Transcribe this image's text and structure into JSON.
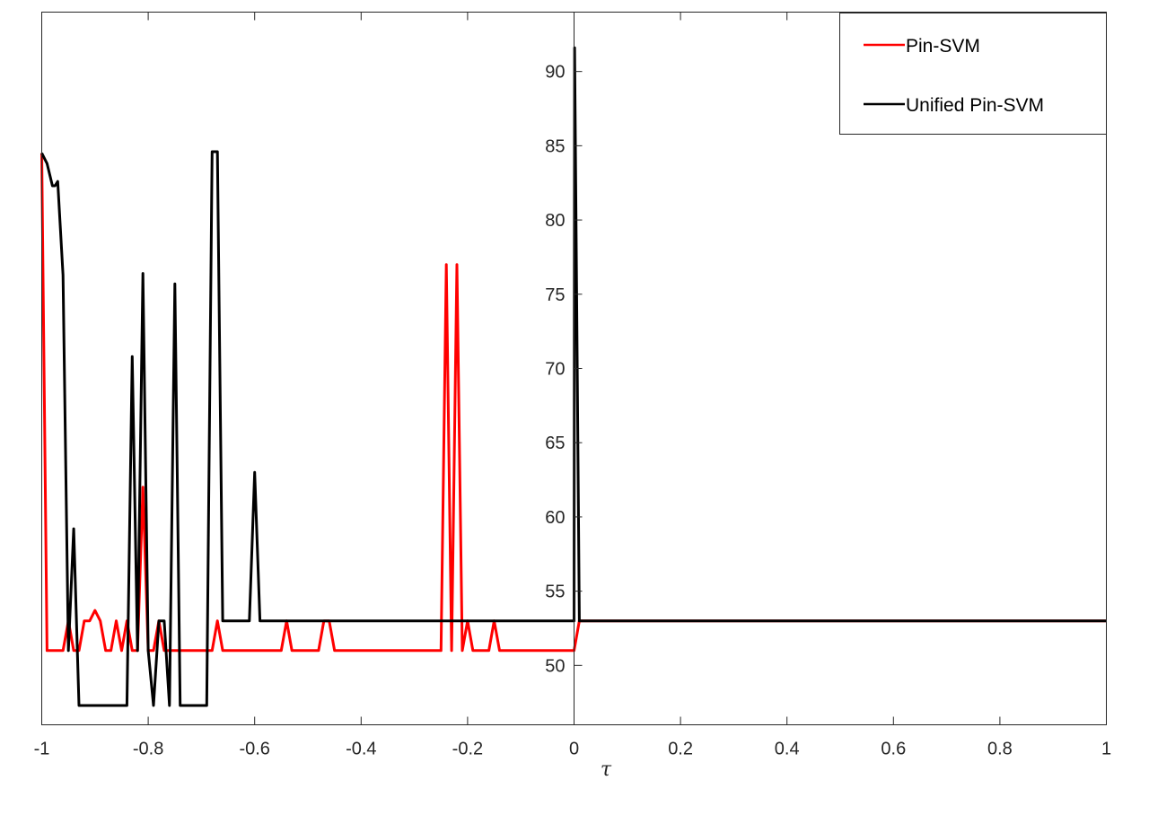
{
  "chart_data": {
    "type": "line",
    "title": "",
    "xlabel": "τ",
    "ylabel": "",
    "xlim": [
      -1,
      1
    ],
    "ylim": [
      46,
      94
    ],
    "grid": false,
    "legend_position": "top-right",
    "x_ticks": [
      -1,
      -0.8,
      -0.6,
      -0.4,
      -0.2,
      0,
      0.2,
      0.4,
      0.6,
      0.8,
      1
    ],
    "x_tick_labels": [
      "-1",
      "-0.8",
      "-0.6",
      "-0.4",
      "-0.2",
      "0",
      "0.2",
      "0.4",
      "0.6",
      "0.8",
      "1"
    ],
    "y_ticks": [
      50,
      55,
      60,
      65,
      70,
      75,
      80,
      85,
      90
    ],
    "y_tick_labels": [
      "50",
      "55",
      "60",
      "65",
      "70",
      "75",
      "80",
      "85",
      "90"
    ],
    "series": [
      {
        "name": "Pin-SVM",
        "color": "#ff0000",
        "x": [
          -1,
          -0.99,
          -0.98,
          -0.96,
          -0.95,
          -0.94,
          -0.93,
          -0.92,
          -0.91,
          -0.9,
          -0.89,
          -0.88,
          -0.87,
          -0.86,
          -0.85,
          -0.84,
          -0.83,
          -0.82,
          -0.81,
          -0.8,
          -0.79,
          -0.78,
          -0.77,
          -0.76,
          -0.68,
          -0.67,
          -0.66,
          -0.55,
          -0.54,
          -0.53,
          -0.48,
          -0.47,
          -0.46,
          -0.45,
          -0.25,
          -0.24,
          -0.23,
          -0.22,
          -0.21,
          -0.2,
          -0.19,
          -0.17,
          -0.16,
          -0.15,
          -0.14,
          0,
          0.01,
          1
        ],
        "y": [
          84.5,
          51,
          51,
          51,
          53,
          51,
          51,
          53,
          53,
          53.7,
          53,
          51,
          51,
          53,
          51,
          53,
          51,
          51,
          62,
          51,
          51,
          53,
          51,
          51,
          51,
          53,
          51,
          51,
          53,
          51,
          51,
          53,
          53,
          51,
          51,
          77,
          51,
          77,
          51,
          53,
          51,
          51,
          51,
          53,
          51,
          51,
          53,
          53
        ]
      },
      {
        "name": "Unified Pin-SVM",
        "color": "#000000",
        "x": [
          -1,
          -0.99,
          -0.98,
          -0.975,
          -0.97,
          -0.96,
          -0.95,
          -0.94,
          -0.93,
          -0.92,
          -0.85,
          -0.84,
          -0.83,
          -0.82,
          -0.81,
          -0.8,
          -0.79,
          -0.78,
          -0.77,
          -0.76,
          -0.75,
          -0.74,
          -0.73,
          -0.72,
          -0.69,
          -0.68,
          -0.67,
          -0.66,
          -0.61,
          -0.6,
          -0.59,
          0,
          0.001,
          0.01,
          1
        ],
        "y": [
          84.5,
          83.8,
          82.3,
          82.3,
          82.6,
          76.3,
          51,
          59.2,
          47.3,
          47.3,
          47.3,
          47.3,
          70.8,
          51,
          76.4,
          51,
          47.3,
          53,
          53,
          47.3,
          75.7,
          47.3,
          47.3,
          47.3,
          47.3,
          84.6,
          84.6,
          53,
          53,
          63,
          53,
          53,
          91.6,
          53,
          53
        ]
      }
    ]
  }
}
